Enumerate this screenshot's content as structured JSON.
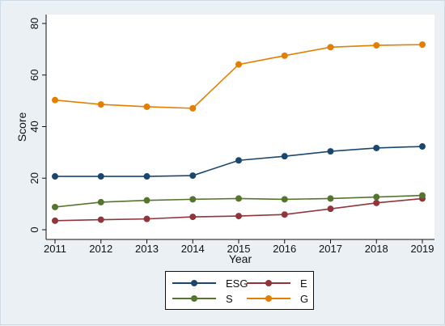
{
  "chart_data": {
    "type": "line",
    "xlabel": "Year",
    "ylabel": "Score",
    "x": [
      2011,
      2012,
      2013,
      2014,
      2015,
      2016,
      2017,
      2018,
      2019
    ],
    "xlim": [
      2011,
      2019
    ],
    "ylim": [
      0,
      80
    ],
    "y_ticks": [
      0,
      20,
      40,
      60,
      80
    ],
    "grid": false,
    "legend_position": "bottom",
    "series": [
      {
        "name": "ESG",
        "color": "#1a476f",
        "values": [
          20.7,
          20.7,
          20.7,
          21.0,
          26.9,
          28.5,
          30.4,
          31.7,
          32.3
        ]
      },
      {
        "name": "E",
        "color": "#90353b",
        "values": [
          3.5,
          3.9,
          4.2,
          5.0,
          5.3,
          5.9,
          8.1,
          10.4,
          12.1
        ]
      },
      {
        "name": "S",
        "color": "#55752f",
        "values": [
          8.8,
          10.7,
          11.4,
          11.8,
          12.1,
          11.8,
          12.1,
          12.7,
          13.3
        ]
      },
      {
        "name": "G",
        "color": "#e37e00",
        "values": [
          50.3,
          48.6,
          47.7,
          47.1,
          64.1,
          67.5,
          70.8,
          71.5,
          71.8
        ]
      }
    ]
  }
}
